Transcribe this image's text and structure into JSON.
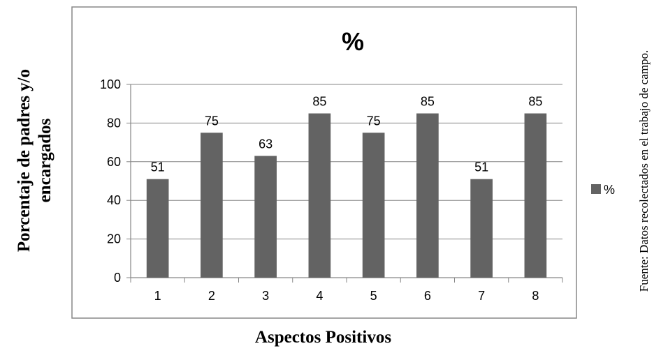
{
  "chart_data": {
    "type": "bar",
    "title": "%",
    "xlabel": "Aspectos Positivos",
    "ylabel_lines": [
      "Porcentaje de padres y/o",
      "encargados"
    ],
    "categories": [
      "1",
      "2",
      "3",
      "4",
      "5",
      "6",
      "7",
      "8"
    ],
    "series": [
      {
        "name": "%",
        "values": [
          51,
          75,
          63,
          85,
          75,
          85,
          51,
          85
        ]
      }
    ],
    "data_labels": [
      "51",
      "75",
      "63",
      "85",
      "75",
      "85",
      "51",
      "85"
    ],
    "ylim": [
      0,
      100
    ],
    "yticks": [
      "0",
      "20",
      "40",
      "60",
      "80",
      "100"
    ],
    "grid": true,
    "legend_position": "right",
    "bar_color": "#636363"
  },
  "source_note": "Fuente: Datos recolectados en el trabajo de campo."
}
